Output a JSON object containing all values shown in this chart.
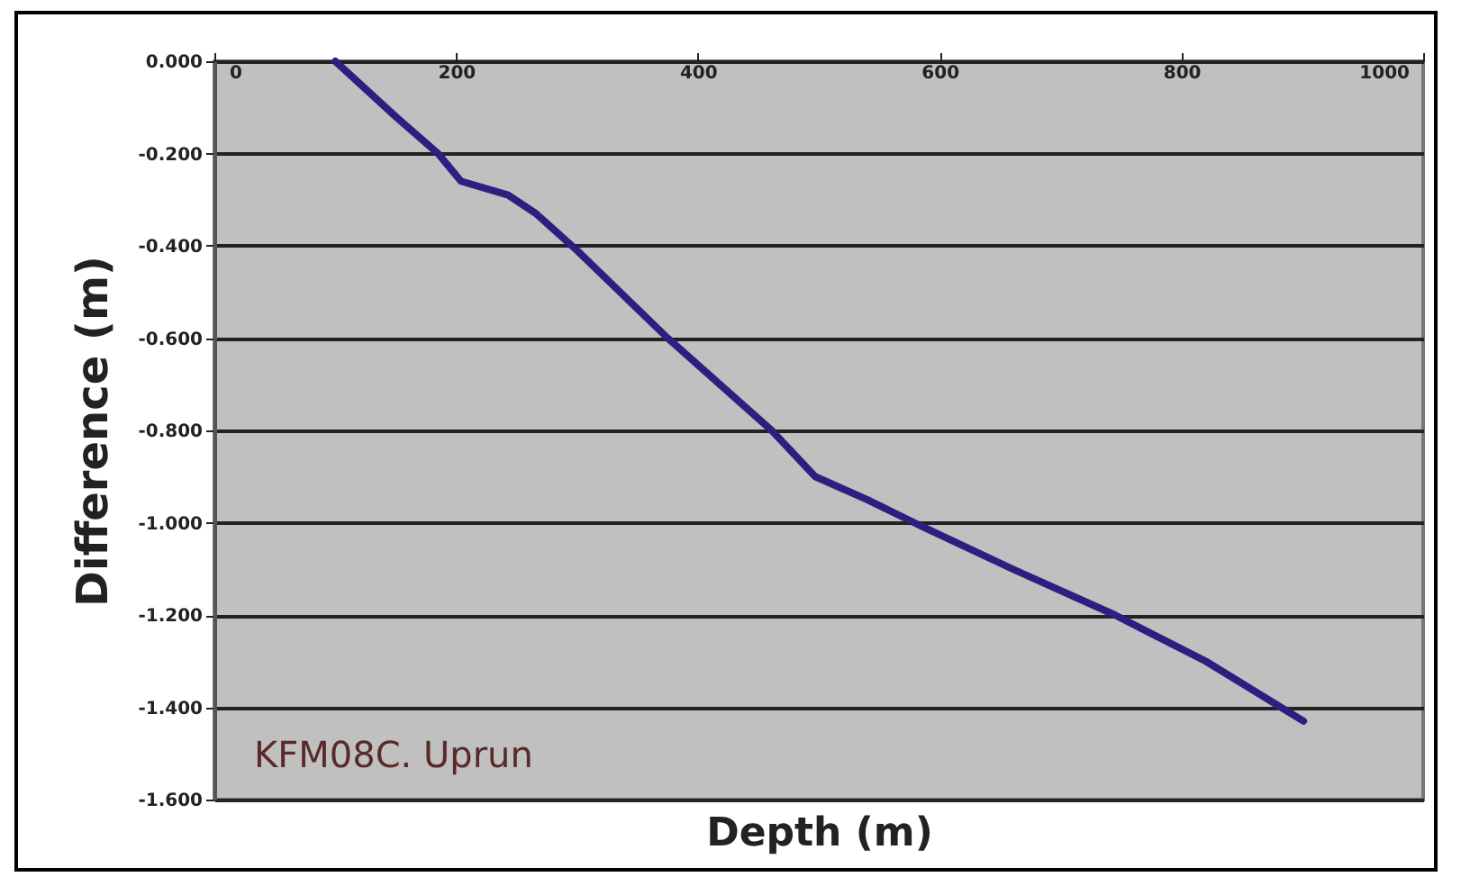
{
  "chart_data": {
    "type": "line",
    "xlabel": "Depth (m)",
    "ylabel": "Difference (m)",
    "annotations": [
      "KFM08C. Uprun"
    ],
    "x": [
      100,
      150,
      185,
      204,
      243,
      266,
      300,
      375,
      461,
      497,
      540,
      579,
      660,
      745,
      820,
      901
    ],
    "series": [
      {
        "color": "#2b2080",
        "values": [
          0,
          -0.12,
          -0.2,
          -0.26,
          -0.29,
          -0.33,
          -0.41,
          -0.6,
          -0.8,
          -0.9,
          -0.95,
          -1.0,
          -1.1,
          -1.2,
          -1.3,
          -1.43
        ]
      }
    ],
    "xlim": [
      0,
      1000
    ],
    "xticks": [
      0,
      200,
      400,
      600,
      800,
      1000
    ],
    "ylim": [
      -1.6,
      0
    ],
    "yticks": [
      {
        "value": 0,
        "label": "0.000"
      },
      {
        "value": -0.2,
        "label": "-0.200"
      },
      {
        "value": -0.4,
        "label": "-0.400"
      },
      {
        "value": -0.6,
        "label": "-0.600"
      },
      {
        "value": -0.8,
        "label": "-0.800"
      },
      {
        "value": -1.0,
        "label": "-1.000"
      },
      {
        "value": -1.2,
        "label": "-1.200"
      },
      {
        "value": -1.4,
        "label": "-1.400"
      },
      {
        "value": -1.6,
        "label": "-1.600"
      }
    ],
    "grid": "y",
    "marker": "none",
    "line_style": "solid"
  }
}
